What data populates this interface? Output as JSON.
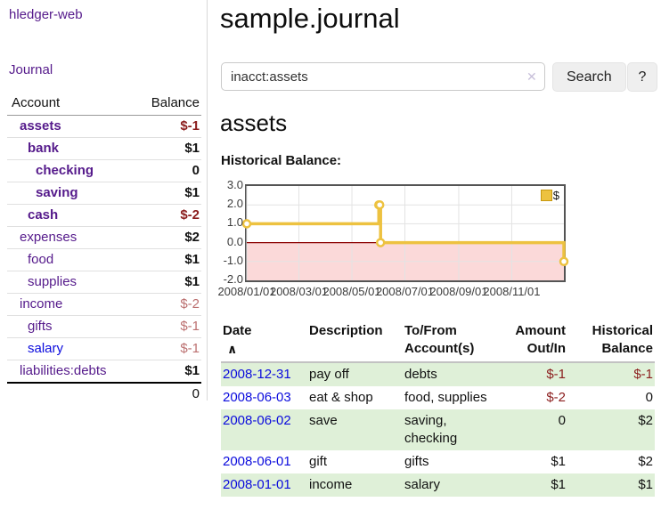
{
  "sidebar": {
    "brand": "hledger-web",
    "nav": {
      "journal": "Journal"
    },
    "accounts_table": {
      "headers": {
        "account": "Account",
        "balance": "Balance"
      },
      "rows": [
        {
          "name": "assets",
          "balance": "$-1",
          "depth": 1,
          "bold": true,
          "name_color": "purple",
          "balance_color": "neg"
        },
        {
          "name": "bank",
          "balance": "$1",
          "depth": 2,
          "bold": true,
          "name_color": "purple",
          "balance_color": "pos"
        },
        {
          "name": "checking",
          "balance": "0",
          "depth": 3,
          "bold": true,
          "name_color": "purple",
          "balance_color": "pos"
        },
        {
          "name": "saving",
          "balance": "$1",
          "depth": 3,
          "bold": true,
          "name_color": "purple",
          "balance_color": "pos"
        },
        {
          "name": "cash",
          "balance": "$-2",
          "depth": 2,
          "bold": true,
          "name_color": "purple",
          "balance_color": "neg"
        },
        {
          "name": "expenses",
          "balance": "$2",
          "depth": 1,
          "bold": false,
          "name_color": "purple",
          "balance_color": "pos"
        },
        {
          "name": "food",
          "balance": "$1",
          "depth": 2,
          "bold": false,
          "name_color": "purple",
          "balance_color": "pos"
        },
        {
          "name": "supplies",
          "balance": "$1",
          "depth": 2,
          "bold": false,
          "name_color": "purple",
          "balance_color": "pos"
        },
        {
          "name": "income",
          "balance": "$-2",
          "depth": 1,
          "bold": false,
          "name_color": "purple",
          "balance_color": "neg-muted"
        },
        {
          "name": "gifts",
          "balance": "$-1",
          "depth": 2,
          "bold": false,
          "name_color": "purple",
          "balance_color": "neg-muted"
        },
        {
          "name": "salary",
          "balance": "$-1",
          "depth": 2,
          "bold": false,
          "name_color": "blue",
          "balance_color": "neg-muted"
        },
        {
          "name": "liabilities:debts",
          "balance": "$1",
          "depth": 1,
          "bold": false,
          "name_color": "purple",
          "balance_color": "pos"
        }
      ],
      "total": "0"
    }
  },
  "header": {
    "title": "sample.journal"
  },
  "search": {
    "value": "inacct:assets",
    "clear_icon": "✕",
    "search_label": "Search",
    "help_label": "?"
  },
  "account_page": {
    "heading": "assets",
    "chart_label": "Historical Balance:"
  },
  "chart_data": {
    "type": "line",
    "step": true,
    "title": "Historical Balance",
    "series": [
      {
        "name": "$",
        "points": [
          [
            "2008-01-01",
            1.0
          ],
          [
            "2008-06-01",
            2.0
          ],
          [
            "2008-06-02",
            2.0
          ],
          [
            "2008-06-03",
            0.0
          ],
          [
            "2008-12-31",
            -1.0
          ]
        ]
      }
    ],
    "x_range": [
      "2008-01-01",
      "2008-12-31"
    ],
    "x_ticks": [
      {
        "date": "2008-01-01",
        "label": "2008/01/01"
      },
      {
        "date": "2008-03-01",
        "label": "2008/03/01"
      },
      {
        "date": "2008-05-01",
        "label": "2008/05/01"
      },
      {
        "date": "2008-07-01",
        "label": "2008/07/01"
      },
      {
        "date": "2008-09-01",
        "label": "2008/09/01"
      },
      {
        "date": "2008-11-01",
        "label": "2008/11/01"
      }
    ],
    "ylim": [
      -2.0,
      3.0
    ],
    "y_tick_step": 1.0,
    "y_tick_labels": [
      "-2.0",
      "-1.0",
      "0.0",
      "1.0",
      "2.0",
      "3.0"
    ],
    "legend_label": "$",
    "legend_position": "top-right",
    "grid": true,
    "negative_region_shaded": true
  },
  "register_table": {
    "headers": {
      "date": "Date",
      "sort_icon": "∧",
      "description": "Description",
      "tofrom_line1": "To/From",
      "tofrom_line2": "Account(s)",
      "amount_line1": "Amount",
      "amount_line2": "Out/In",
      "hist_line1": "Historical",
      "hist_line2": "Balance"
    },
    "rows": [
      {
        "date": "2008-12-31",
        "description": "pay off",
        "accounts": "debts",
        "amount": "$-1",
        "amount_neg": true,
        "balance": "$-1",
        "balance_neg": true
      },
      {
        "date": "2008-06-03",
        "description": "eat & shop",
        "accounts": "food, supplies",
        "amount": "$-2",
        "amount_neg": true,
        "balance": "0",
        "balance_neg": false
      },
      {
        "date": "2008-06-02",
        "description": "save",
        "accounts": "saving, checking",
        "amount": "0",
        "amount_neg": false,
        "balance": "$2",
        "balance_neg": false
      },
      {
        "date": "2008-06-01",
        "description": "gift",
        "accounts": "gifts",
        "amount": "$1",
        "amount_neg": false,
        "balance": "$2",
        "balance_neg": false
      },
      {
        "date": "2008-01-01",
        "description": "income",
        "accounts": "salary",
        "amount": "$1",
        "amount_neg": false,
        "balance": "$1",
        "balance_neg": false
      }
    ]
  },
  "colors": {
    "accent_purple": "#551a8b",
    "link_blue": "#0b0bdd",
    "negative_strong": "#8b1d1d",
    "negative_muted": "#bb6f6f",
    "row_stripe_green": "#dff0d8",
    "chart_line": "#edc240",
    "chart_negative_region": "#fbd9d9",
    "chart_zero_line": "#8b0000",
    "chart_border": "#545454",
    "chart_grid": "#e3e3e3"
  }
}
